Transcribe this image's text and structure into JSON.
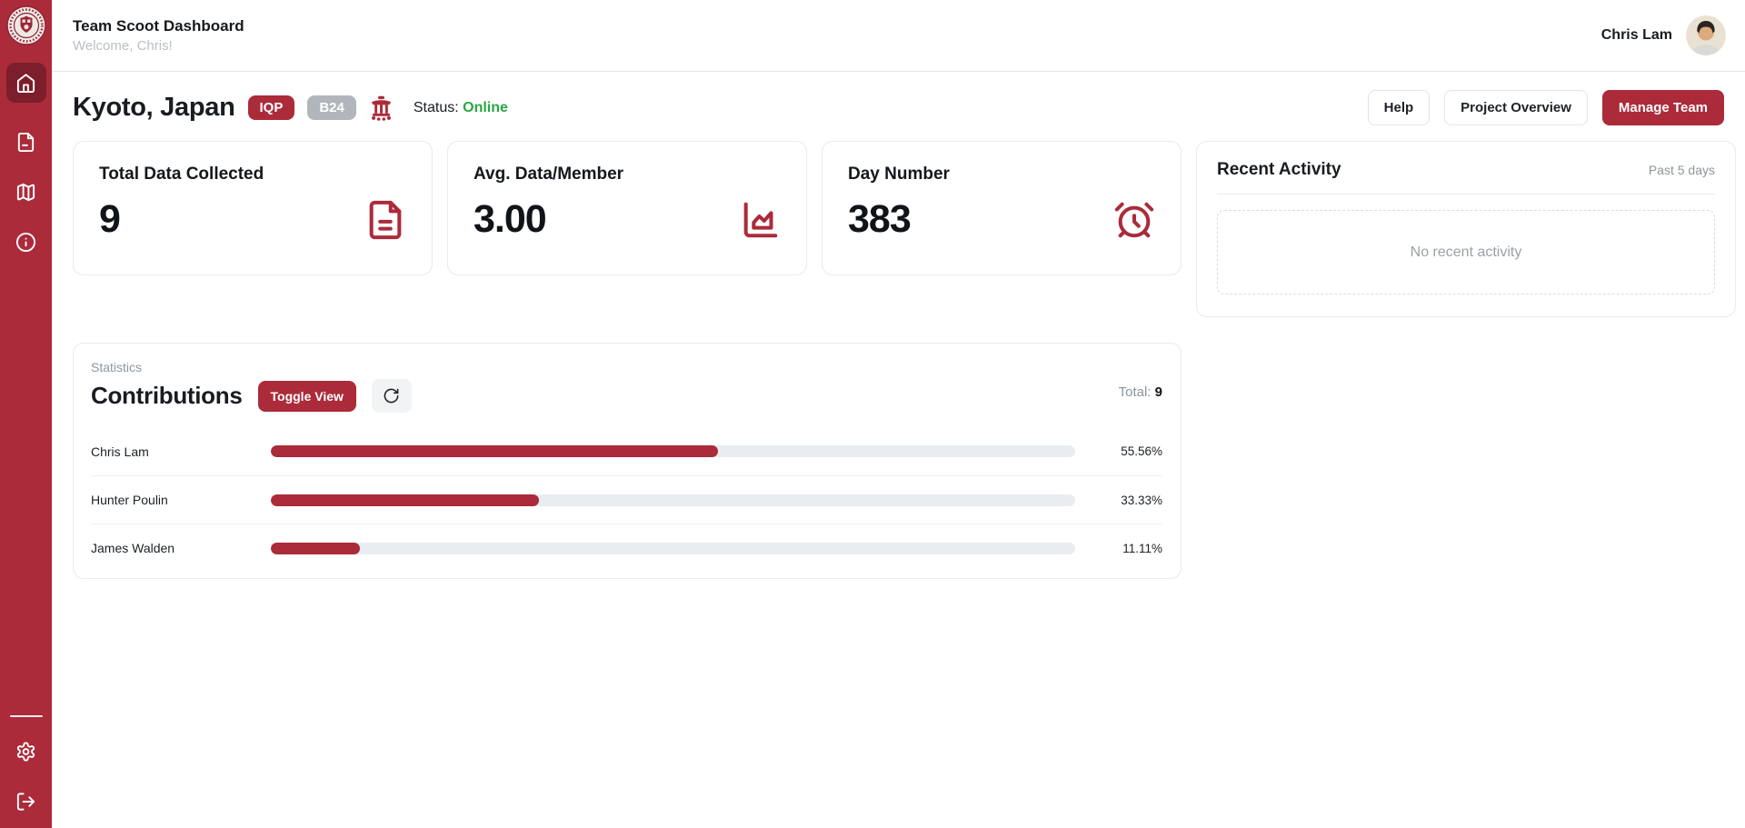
{
  "theme": {
    "accent": "#ab2b3a",
    "sidebar": "#ab2b3a",
    "sidebar_active": "#7c1e2b",
    "success": "#28a745",
    "muted": "#8d959d",
    "track": "#e9edf2",
    "badge_gray": "#b0b6bc"
  },
  "topbar": {
    "title": "Team Scoot Dashboard",
    "subtitle": "Welcome, Chris!",
    "user_name": "Chris Lam"
  },
  "sidebar": {
    "items": [
      {
        "icon": "home-icon",
        "active": true
      },
      {
        "icon": "document-icon",
        "active": false
      },
      {
        "icon": "map-icon",
        "active": false
      },
      {
        "icon": "info-icon",
        "active": false
      }
    ],
    "footer_items": [
      {
        "icon": "settings-icon"
      },
      {
        "icon": "logout-icon"
      }
    ]
  },
  "page_header": {
    "location": "Kyoto, Japan",
    "badge_primary": "IQP",
    "badge_secondary": "B24",
    "status_label": "Status:",
    "status_value": "Online",
    "buttons": {
      "help": "Help",
      "overview": "Project Overview",
      "manage": "Manage Team"
    }
  },
  "stats": [
    {
      "label": "Total Data Collected",
      "value": "9",
      "icon": "file-text-icon"
    },
    {
      "label": "Avg. Data/Member",
      "value": "3.00",
      "icon": "chart-area-icon"
    },
    {
      "label": "Day Number",
      "value": "383",
      "icon": "alarm-clock-icon"
    }
  ],
  "recent_activity": {
    "title": "Recent Activity",
    "period": "Past 5 days",
    "empty_message": "No recent activity"
  },
  "contributions": {
    "section_label": "Statistics",
    "title": "Contributions",
    "toggle_button_label": "Toggle View",
    "total_label": "Total:",
    "total_value": "9",
    "rows": [
      {
        "name": "Chris Lam",
        "percent": 55.56,
        "percent_label": "55.56%"
      },
      {
        "name": "Hunter Poulin",
        "percent": 33.33,
        "percent_label": "33.33%"
      },
      {
        "name": "James Walden",
        "percent": 11.11,
        "percent_label": "11.11%"
      }
    ]
  },
  "chart_data": {
    "type": "bar",
    "title": "Contributions",
    "categories": [
      "Chris Lam",
      "Hunter Poulin",
      "James Walden"
    ],
    "values": [
      55.56,
      33.33,
      11.11
    ],
    "unit": "%",
    "total": 9,
    "xlim": [
      0,
      100
    ],
    "orientation": "horizontal"
  }
}
